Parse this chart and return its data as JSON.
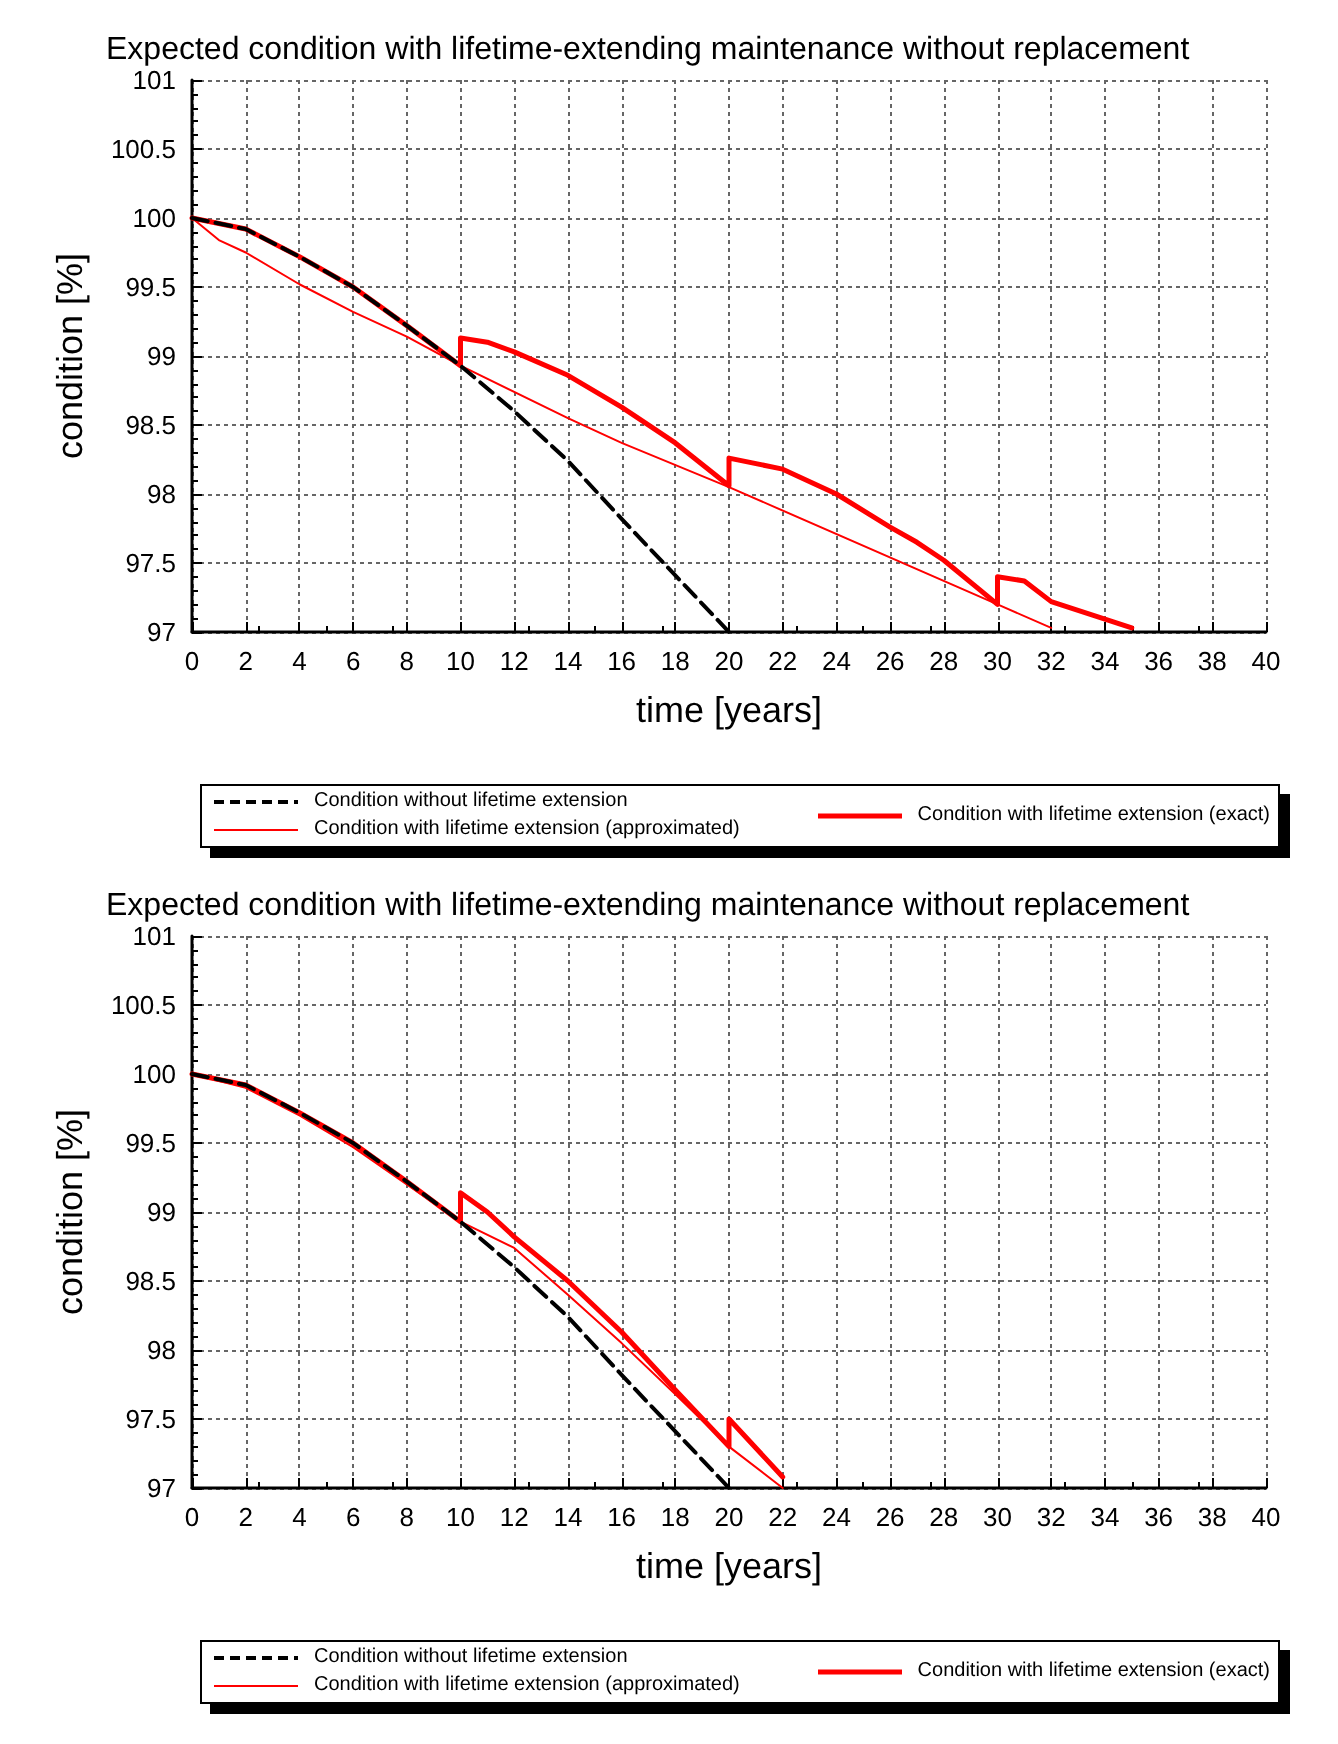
{
  "chart_data": [
    {
      "type": "line",
      "title": "Expected condition with lifetime-extending maintenance without replacement",
      "xlabel": "time [years]",
      "ylabel": "condition [%]",
      "xlim": [
        0,
        40
      ],
      "ylim": [
        97,
        101
      ],
      "xticks": [
        0,
        2,
        4,
        6,
        8,
        10,
        12,
        14,
        16,
        18,
        20,
        22,
        24,
        26,
        28,
        30,
        32,
        34,
        36,
        38,
        40
      ],
      "yticks": [
        97,
        97.5,
        98,
        98.5,
        99,
        99.5,
        100,
        100.5,
        101
      ],
      "grid": true,
      "legend": "bottom",
      "marker": "none",
      "series": [
        {
          "name": "Condition without lifetime extension",
          "color": "#000000",
          "line_style": "dashed",
          "x": [
            0,
            2,
            4,
            6,
            8,
            10,
            12,
            14,
            16,
            18,
            20
          ],
          "values": [
            100,
            99.92,
            99.72,
            99.5,
            99.22,
            98.93,
            98.6,
            98.24,
            97.82,
            97.41,
            97.0
          ]
        },
        {
          "name": "Condition with lifetime extension (approximated)",
          "color": "#ff0000",
          "line_style": "solid",
          "x": [
            0,
            1,
            2,
            4,
            6,
            8,
            10,
            14,
            16,
            20,
            30,
            32
          ],
          "values": [
            100,
            99.84,
            99.75,
            99.52,
            99.32,
            99.14,
            98.93,
            98.55,
            98.37,
            98.05,
            97.2,
            97.03
          ]
        },
        {
          "name": "Condition with lifetime extension (exact)",
          "color": "#ff0000",
          "line_style": "solid",
          "x": [
            0,
            2,
            4,
            6,
            8,
            10,
            10,
            11,
            12,
            14,
            16,
            18,
            20,
            20,
            22,
            24,
            26,
            27,
            28,
            30,
            30,
            31,
            32,
            35
          ],
          "values": [
            100,
            99.92,
            99.72,
            99.5,
            99.22,
            98.93,
            99.13,
            99.1,
            99.03,
            98.86,
            98.63,
            98.37,
            98.06,
            98.26,
            98.18,
            98.0,
            97.76,
            97.65,
            97.52,
            97.2,
            97.4,
            97.37,
            97.22,
            97.03
          ]
        }
      ]
    },
    {
      "type": "line",
      "title": "Expected condition with lifetime-extending maintenance without replacement",
      "xlabel": "time [years]",
      "ylabel": "condition [%]",
      "xlim": [
        0,
        40
      ],
      "ylim": [
        97,
        101
      ],
      "xticks": [
        0,
        2,
        4,
        6,
        8,
        10,
        12,
        14,
        16,
        18,
        20,
        22,
        24,
        26,
        28,
        30,
        32,
        34,
        36,
        38,
        40
      ],
      "yticks": [
        97,
        97.5,
        98,
        98.5,
        99,
        99.5,
        100,
        100.5,
        101
      ],
      "grid": true,
      "legend": "bottom",
      "marker": "none",
      "series": [
        {
          "name": "Condition without lifetime extension",
          "color": "#000000",
          "line_style": "dashed",
          "x": [
            0,
            2,
            4,
            6,
            8,
            10,
            12,
            14,
            16,
            18,
            20
          ],
          "values": [
            100,
            99.92,
            99.72,
            99.5,
            99.22,
            98.93,
            98.6,
            98.24,
            97.82,
            97.41,
            97.0
          ]
        },
        {
          "name": "Condition with lifetime extension (approximated)",
          "color": "#ff0000",
          "line_style": "solid",
          "x": [
            0,
            2,
            4,
            6,
            8,
            10,
            12,
            14,
            16,
            18,
            20,
            22
          ],
          "values": [
            100,
            99.9,
            99.7,
            99.47,
            99.2,
            98.93,
            98.74,
            98.4,
            98.05,
            97.68,
            97.3,
            97.0
          ]
        },
        {
          "name": "Condition with lifetime extension (exact)",
          "color": "#ff0000",
          "line_style": "solid",
          "x": [
            0,
            2,
            4,
            6,
            8,
            10,
            10,
            11,
            12,
            14,
            16,
            18,
            20,
            20,
            22
          ],
          "values": [
            100,
            99.92,
            99.72,
            99.5,
            99.22,
            98.93,
            99.14,
            99.0,
            98.82,
            98.5,
            98.13,
            97.71,
            97.3,
            97.5,
            97.08
          ]
        }
      ]
    }
  ]
}
